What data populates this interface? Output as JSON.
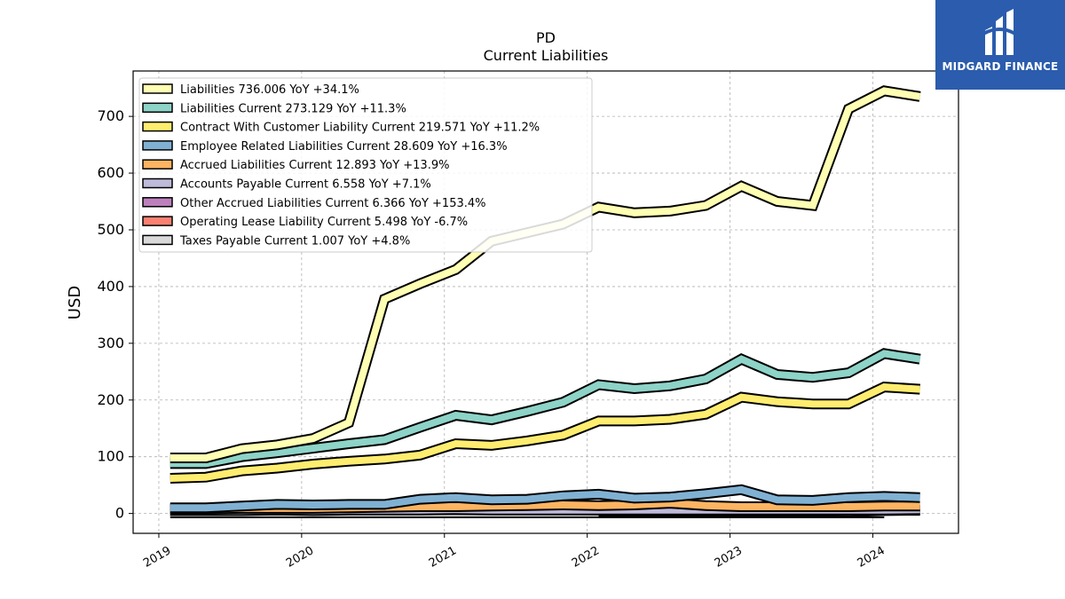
{
  "logo": {
    "text": "MIDGARD FINANCE",
    "icon": "midgard-logo-icon",
    "background": "#2b5cad"
  },
  "chart_data": {
    "type": "line",
    "title": "PD",
    "subtitle": "Current  Liabilities",
    "ylabel": "USD",
    "xlabel": "",
    "ylim": [
      -35,
      780
    ],
    "xlim": [
      2018.82,
      2024.6
    ],
    "yticks": [
      0,
      100,
      200,
      300,
      400,
      500,
      600,
      700
    ],
    "xticks": [
      "2019",
      "2020",
      "2021",
      "2022",
      "2023",
      "2024"
    ],
    "grid": true,
    "legend_position": "top-left",
    "x": [
      2019.08,
      2019.33,
      2019.58,
      2019.83,
      2020.08,
      2020.33,
      2020.58,
      2020.83,
      2021.08,
      2021.33,
      2021.58,
      2021.83,
      2022.08,
      2022.33,
      2022.58,
      2022.83,
      2023.08,
      2023.33,
      2023.58,
      2023.83,
      2024.08,
      2024.33
    ],
    "series": [
      {
        "name": "Liabilities",
        "legend": "Liabilities  736.006 YoY +34.1%",
        "color": "#ffffb3",
        "values": [
          98,
          98,
          114,
          121,
          132,
          160,
          378,
          405,
          430,
          480,
          495,
          510,
          540,
          530,
          533,
          543,
          577,
          550,
          543,
          713,
          745,
          735
        ]
      },
      {
        "name": "Liabilities Current",
        "legend": "Liabilities Current  273.129 YoY +11.3%",
        "color": "#8dd3c7",
        "values": [
          88,
          88,
          100,
          107,
          115,
          123,
          130,
          152,
          173,
          165,
          180,
          196,
          227,
          220,
          225,
          237,
          272,
          245,
          240,
          248,
          282,
          272
        ]
      },
      {
        "name": "Contract With Customer Liability Current",
        "legend": "Contract With Customer Liability Current  219.571 YoY +11.2%",
        "color": "#ffed6f",
        "values": [
          62,
          64,
          75,
          80,
          87,
          92,
          96,
          103,
          123,
          120,
          128,
          138,
          163,
          163,
          166,
          175,
          205,
          197,
          193,
          193,
          223,
          219
        ]
      },
      {
        "name": "Employee Related Liabilities Current",
        "legend": "Employee Related Liabilities Current  28.609 YoY +16.3%",
        "color": "#80b1d3",
        "values": [
          10,
          10,
          13,
          16,
          15,
          16,
          16,
          25,
          28,
          24,
          25,
          31,
          34,
          27,
          29,
          35,
          42,
          24,
          23,
          28,
          30,
          28
        ]
      },
      {
        "name": "Accrued Liabilities Current",
        "legend": "Accrued Liabilities Current  12.893 YoY +13.9%",
        "color": "#fdb462",
        "values": [
          8,
          8,
          9,
          9,
          9,
          10,
          11,
          12,
          12,
          13,
          14,
          15,
          14,
          15,
          18,
          14,
          12,
          12,
          12,
          12,
          13,
          13
        ]
      },
      {
        "name": "Accounts Payable Current",
        "legend": "Accounts Payable Current  6.558 YoY +7.1%",
        "color": "#bebada",
        "values": [
          5,
          5,
          5,
          6,
          5,
          6,
          6,
          6,
          7,
          6,
          6,
          6,
          6,
          6,
          6,
          6,
          6,
          6,
          6,
          6,
          6,
          7
        ]
      },
      {
        "name": "Other Accrued Liabilities Current",
        "legend": "Other Accrued Liabilities Current  6.366 YoY +153.4%",
        "color": "#bc80bd",
        "values": [
          null,
          null,
          null,
          null,
          null,
          null,
          null,
          null,
          null,
          null,
          null,
          null,
          4,
          4,
          4,
          4,
          4,
          4,
          4,
          3,
          5,
          6
        ]
      },
      {
        "name": "Operating Lease Liability Current",
        "legend": "Operating Lease Liability Current  5.498 YoY -6.7%",
        "color": "#fb8072",
        "values": [
          8,
          8,
          8,
          7,
          7,
          7,
          7,
          7,
          7,
          7,
          7,
          7,
          6,
          6,
          6,
          6,
          6,
          6,
          6,
          6,
          6,
          5.5
        ]
      },
      {
        "name": "Taxes Payable Current",
        "legend": "Taxes Payable Current  1.007 YoY +4.8%",
        "color": "#d9d9d9",
        "values": [
          1,
          1,
          1,
          1,
          1,
          1,
          1,
          1,
          1,
          1,
          1,
          1,
          1,
          1,
          1,
          1,
          1,
          1,
          1,
          1,
          1,
          null
        ]
      }
    ]
  }
}
